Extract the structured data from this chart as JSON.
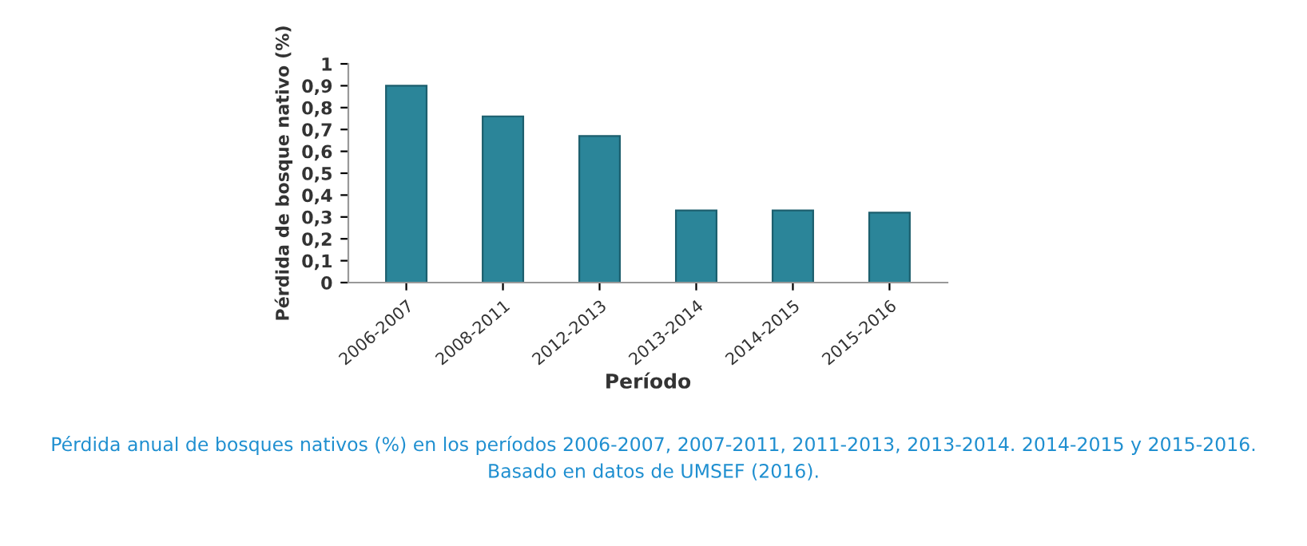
{
  "chart_data": {
    "type": "bar",
    "xlabel": "Período",
    "ylabel": "Pérdida de bosque nativo (%)",
    "categories": [
      "2006-2007",
      "2008-2011",
      "2012-2013",
      "2013-2014",
      "2014-2015",
      "2015-2016"
    ],
    "values": [
      0.9,
      0.76,
      0.67,
      0.33,
      0.33,
      0.32
    ],
    "color": "#2b8599",
    "ylim": [
      0,
      1
    ],
    "yticks": [
      {
        "value": 0,
        "label": "0"
      },
      {
        "value": 0.1,
        "label": "0,1"
      },
      {
        "value": 0.2,
        "label": "0,2"
      },
      {
        "value": 0.3,
        "label": "0,3"
      },
      {
        "value": 0.4,
        "label": "0,4"
      },
      {
        "value": 0.5,
        "label": "0,5"
      },
      {
        "value": 0.6,
        "label": "0,6"
      },
      {
        "value": 0.7,
        "label": "0,7"
      },
      {
        "value": 0.8,
        "label": "0,8"
      },
      {
        "value": 0.9,
        "label": "0,9"
      },
      {
        "value": 1,
        "label": "1"
      }
    ],
    "grid": false,
    "annotations": [
      "Pérdida anual de bosques nativos (%) en los períodos 2006-2007, 2007-2011, 2011-2013, 2013-2014. 2014-2015 y 2015-2016.",
      "Basado en datos de UMSEF (2016)."
    ]
  }
}
